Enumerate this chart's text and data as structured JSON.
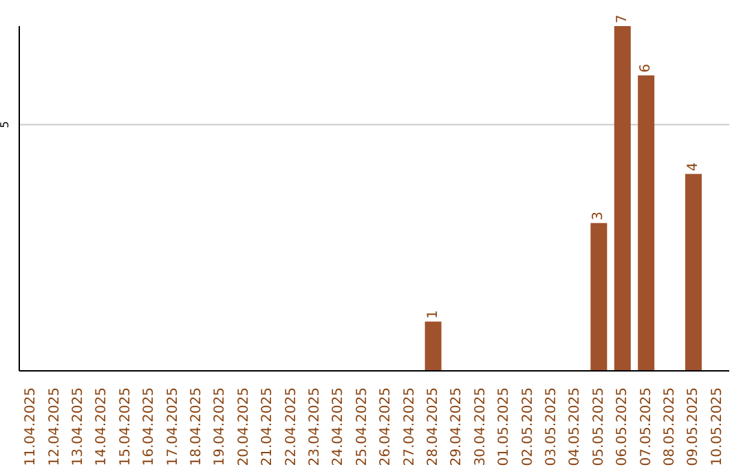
{
  "chart_data": {
    "type": "bar",
    "categories": [
      "11.04.2025",
      "12.04.2025",
      "13.04.2025",
      "14.04.2025",
      "15.04.2025",
      "16.04.2025",
      "17.04.2025",
      "18.04.2025",
      "19.04.2025",
      "20.04.2025",
      "21.04.2025",
      "22.04.2025",
      "23.04.2025",
      "24.04.2025",
      "25.04.2025",
      "26.04.2025",
      "27.04.2025",
      "28.04.2025",
      "29.04.2025",
      "30.04.2025",
      "01.05.2025",
      "02.05.2025",
      "03.05.2025",
      "04.05.2025",
      "05.05.2025",
      "06.05.2025",
      "07.05.2025",
      "08.05.2025",
      "09.05.2025",
      "10.05.2025"
    ],
    "values": [
      null,
      null,
      null,
      null,
      null,
      null,
      null,
      null,
      null,
      null,
      null,
      null,
      null,
      null,
      null,
      null,
      null,
      1,
      null,
      null,
      null,
      null,
      null,
      null,
      3,
      7,
      6,
      null,
      4,
      null
    ],
    "color": "#a0522d",
    "ylim": [
      0,
      7
    ],
    "yticks": [
      5
    ],
    "grid": "y",
    "data_labels": true
  }
}
